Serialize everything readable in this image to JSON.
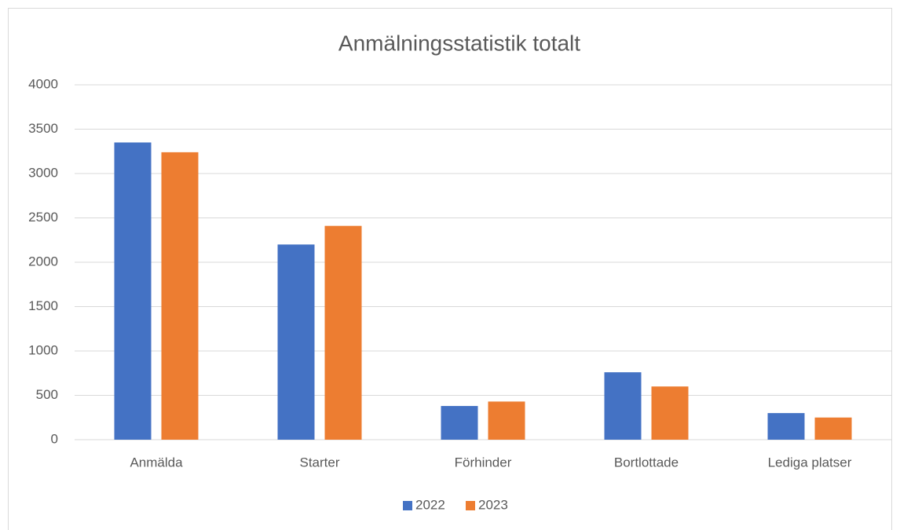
{
  "chart_data": {
    "type": "bar",
    "title": "Anmälningsstatistik totalt",
    "categories": [
      "Anmälda",
      "Starter",
      "Förhinder",
      "Bortlottade",
      "Lediga platser"
    ],
    "series": [
      {
        "name": "2022",
        "color": "#4472c4",
        "values": [
          3350,
          2200,
          380,
          760,
          300
        ]
      },
      {
        "name": "2023",
        "color": "#ed7d31",
        "values": [
          3240,
          2410,
          430,
          600,
          250
        ]
      }
    ],
    "ylim": [
      0,
      4000
    ],
    "yticks": [
      0,
      500,
      1000,
      1500,
      2000,
      2500,
      3000,
      3500,
      4000
    ],
    "grid": true,
    "legend": "bottom"
  }
}
